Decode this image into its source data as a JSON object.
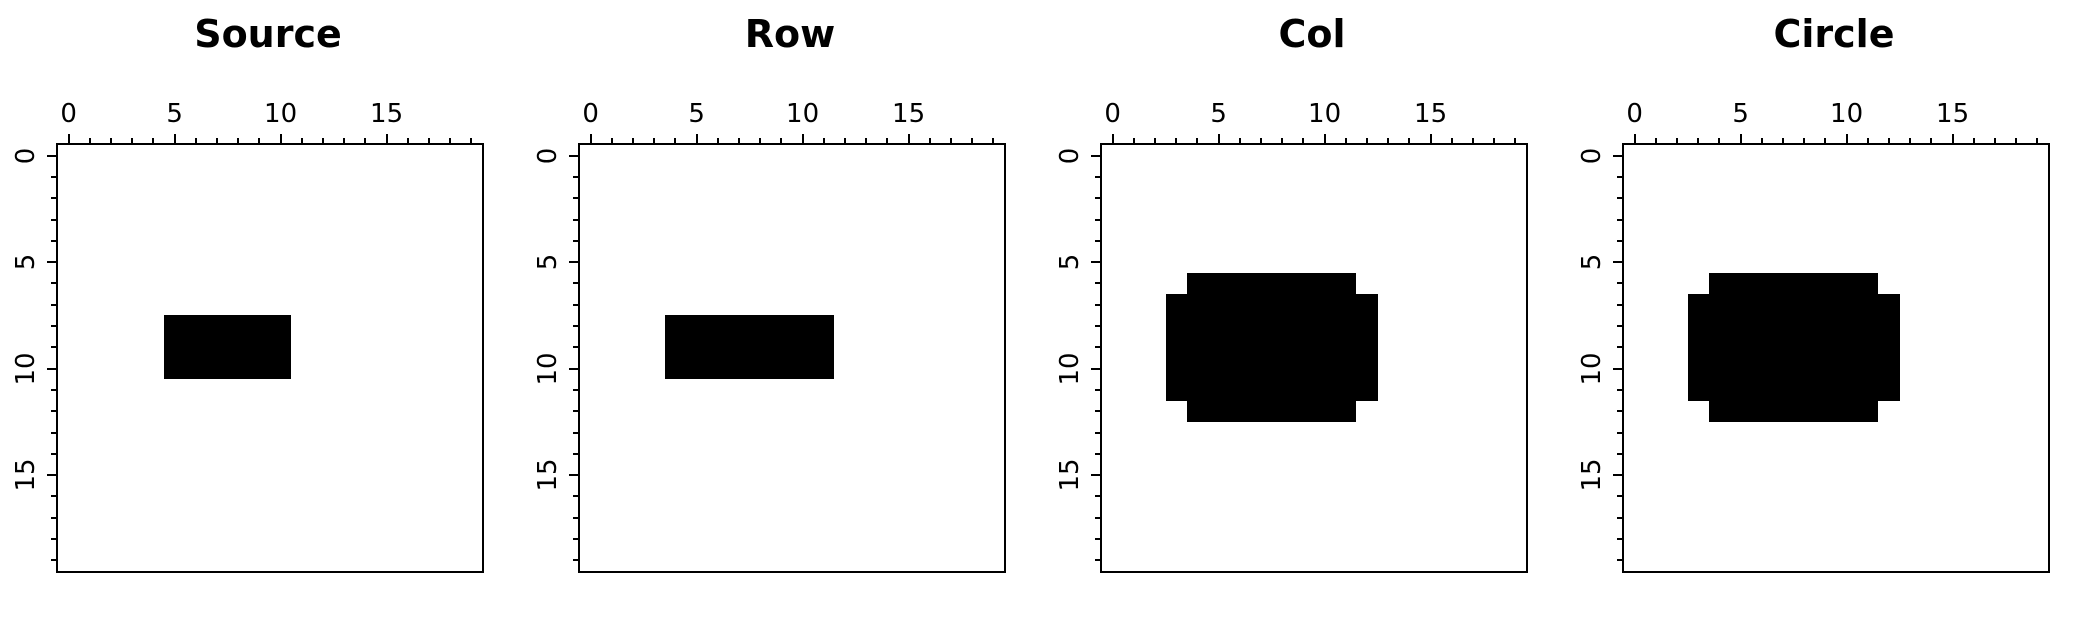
{
  "figure": {
    "background": "#ffffff",
    "fill_color": "#000000",
    "axis_color": "#000000",
    "panel_count": 4
  },
  "chart_data": [
    {
      "type": "heatmap",
      "title": "Source",
      "grid": 20,
      "x_range": [
        -0.5,
        19.5
      ],
      "y_range": [
        -0.5,
        19.5
      ],
      "y_inverted": true,
      "x_ticks": [
        0,
        5,
        10,
        15
      ],
      "y_ticks": [
        0,
        5,
        10,
        15
      ],
      "minor_tick_step": 1,
      "fill_color": "#000000",
      "regions": [
        {
          "rows": [
            8,
            10
          ],
          "cols": [
            5,
            10
          ]
        }
      ]
    },
    {
      "type": "heatmap",
      "title": "Row",
      "grid": 20,
      "x_range": [
        -0.5,
        19.5
      ],
      "y_range": [
        -0.5,
        19.5
      ],
      "y_inverted": true,
      "x_ticks": [
        0,
        5,
        10,
        15
      ],
      "y_ticks": [
        0,
        5,
        10,
        15
      ],
      "minor_tick_step": 1,
      "fill_color": "#000000",
      "regions": [
        {
          "rows": [
            8,
            10
          ],
          "cols": [
            4,
            11
          ]
        }
      ]
    },
    {
      "type": "heatmap",
      "title": "Col",
      "grid": 20,
      "x_range": [
        -0.5,
        19.5
      ],
      "y_range": [
        -0.5,
        19.5
      ],
      "y_inverted": true,
      "x_ticks": [
        0,
        5,
        10,
        15
      ],
      "y_ticks": [
        0,
        5,
        10,
        15
      ],
      "minor_tick_step": 1,
      "fill_color": "#000000",
      "regions": [
        {
          "rows": [
            6,
            12
          ],
          "cols": [
            4,
            11
          ]
        },
        {
          "rows": [
            7,
            11
          ],
          "cols": [
            3,
            12
          ]
        }
      ]
    },
    {
      "type": "heatmap",
      "title": "Circle",
      "grid": 20,
      "x_range": [
        -0.5,
        19.5
      ],
      "y_range": [
        -0.5,
        19.5
      ],
      "y_inverted": true,
      "x_ticks": [
        0,
        5,
        10,
        15
      ],
      "y_ticks": [
        0,
        5,
        10,
        15
      ],
      "minor_tick_step": 1,
      "fill_color": "#000000",
      "regions": [
        {
          "rows": [
            6,
            12
          ],
          "cols": [
            4,
            11
          ]
        },
        {
          "rows": [
            7,
            11
          ],
          "cols": [
            3,
            12
          ]
        }
      ]
    }
  ]
}
